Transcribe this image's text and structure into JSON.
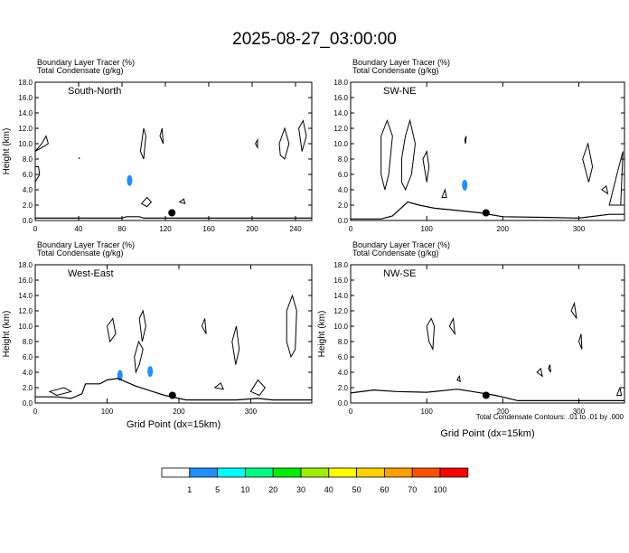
{
  "figure": {
    "title": "2025-08-27_03:00:00",
    "footnote": "Total Condensate Contours: .01 to .01 by .000",
    "xlabel": "Grid Point (dx=15km)"
  },
  "colorbar": {
    "colors": [
      "#ffffff",
      "#1e90ff",
      "#00ffff",
      "#00ff80",
      "#00ee00",
      "#a0ee00",
      "#ffff00",
      "#ffd200",
      "#ffa000",
      "#ff5000",
      "#ff0000"
    ],
    "labels": [
      "1",
      "5",
      "10",
      "20",
      "30",
      "40",
      "50",
      "60",
      "70",
      "100"
    ]
  },
  "chart_data": [
    {
      "type": "contour",
      "name": "South-North",
      "line1": "Boundary Layer Tracer   (%)",
      "line2": "Total Condensate   (g/kg)",
      "ylabel": "Height (km)",
      "xlabel": "",
      "xlim": [
        0,
        255
      ],
      "ylim": [
        0,
        18
      ],
      "xticks": [
        0,
        40,
        80,
        120,
        160,
        200,
        240
      ],
      "yticks": [
        0,
        2,
        4,
        6,
        8,
        10,
        12,
        14,
        16,
        18
      ],
      "ytick_labels": [
        "0.0",
        "2.0",
        "4.0",
        "6.0",
        "8.0",
        "10.0",
        "12.0",
        "14.0",
        "16.0",
        "18.0"
      ],
      "marker": {
        "x": 126,
        "y": 1.0
      },
      "terrain": [
        [
          0,
          0.3
        ],
        [
          80,
          0.3
        ],
        [
          84,
          0.5
        ],
        [
          96,
          0.5
        ],
        [
          100,
          0.3
        ],
        [
          255,
          0.3
        ]
      ],
      "tracer_blobs": [
        [
          87,
          5.2
        ]
      ],
      "condensate_blobs": [
        [
          [
            0,
            9
          ],
          [
            6,
            10
          ],
          [
            10,
            11
          ],
          [
            12,
            10
          ],
          [
            6,
            9.5
          ]
        ],
        [
          [
            97,
            9
          ],
          [
            100,
            12
          ],
          [
            102,
            11
          ],
          [
            100,
            8
          ]
        ],
        [
          [
            115,
            11
          ],
          [
            117,
            12
          ],
          [
            118,
            10
          ]
        ],
        [
          [
            40,
            8
          ],
          [
            41,
            8.2
          ]
        ],
        [
          [
            98,
            2.2
          ],
          [
            103,
            3
          ],
          [
            107,
            2.4
          ],
          [
            103,
            1.8
          ]
        ],
        [
          [
            133,
            2.4
          ],
          [
            137,
            2.8
          ],
          [
            138,
            2.2
          ]
        ],
        [
          [
            203,
            10
          ],
          [
            205,
            10.5
          ],
          [
            205,
            9.5
          ]
        ],
        [
          [
            225,
            10
          ],
          [
            230,
            12
          ],
          [
            234,
            10
          ],
          [
            230,
            8
          ],
          [
            226,
            8.5
          ]
        ],
        [
          [
            243,
            12
          ],
          [
            247,
            13
          ],
          [
            250,
            11
          ],
          [
            246,
            9
          ]
        ],
        [
          [
            0,
            5
          ],
          [
            4,
            6
          ],
          [
            3,
            7
          ],
          [
            0,
            7
          ]
        ]
      ]
    },
    {
      "type": "contour",
      "name": "SW-NE",
      "line1": "Boundary Layer Tracer   (%)",
      "line2": "Total Condensate   (g/kg)",
      "ylabel": "",
      "xlabel": "",
      "xlim": [
        0,
        360
      ],
      "ylim": [
        0,
        18
      ],
      "xticks": [
        0,
        100,
        200,
        300
      ],
      "yticks": [
        0,
        2,
        4,
        6,
        8,
        10,
        12,
        14,
        16,
        18
      ],
      "ytick_labels": [
        "0.0",
        "2.0",
        "4.0",
        "6.0",
        "8.0",
        "10.0",
        "12.0",
        "14.0",
        "16.0",
        "18.0"
      ],
      "marker": {
        "x": 178,
        "y": 1.0
      },
      "terrain": [
        [
          0,
          0.2
        ],
        [
          40,
          0.2
        ],
        [
          55,
          0.6
        ],
        [
          65,
          1.5
        ],
        [
          75,
          2.4
        ],
        [
          90,
          2.0
        ],
        [
          110,
          1.6
        ],
        [
          140,
          1.3
        ],
        [
          170,
          1.0
        ],
        [
          200,
          0.5
        ],
        [
          260,
          0.4
        ],
        [
          300,
          0.3
        ],
        [
          340,
          0.8
        ],
        [
          360,
          0.8
        ]
      ],
      "tracer_blobs": [
        [
          150,
          4.6
        ]
      ],
      "condensate_blobs": [
        [
          [
            40,
            11
          ],
          [
            48,
            13
          ],
          [
            55,
            11
          ],
          [
            50,
            6
          ],
          [
            45,
            4
          ],
          [
            40,
            6
          ]
        ],
        [
          [
            67,
            8
          ],
          [
            72,
            11
          ],
          [
            78,
            13
          ],
          [
            85,
            10
          ],
          [
            80,
            6
          ],
          [
            72,
            4
          ],
          [
            67,
            5
          ]
        ],
        [
          [
            95,
            8
          ],
          [
            100,
            9
          ],
          [
            103,
            7
          ],
          [
            100,
            5
          ]
        ],
        [
          [
            150,
            10.5
          ],
          [
            152,
            11
          ],
          [
            151,
            10
          ]
        ],
        [
          [
            305,
            8
          ],
          [
            312,
            10
          ],
          [
            318,
            7
          ],
          [
            313,
            5
          ]
        ],
        [
          [
            340,
            2
          ],
          [
            350,
            6
          ],
          [
            358,
            9
          ],
          [
            355,
            2
          ]
        ],
        [
          [
            120,
            3
          ],
          [
            124,
            4
          ],
          [
            126,
            3
          ]
        ],
        [
          [
            330,
            4
          ],
          [
            336,
            4.5
          ],
          [
            338,
            3.5
          ]
        ]
      ]
    },
    {
      "type": "contour",
      "name": "West-East",
      "line1": "Boundary Layer Tracer   (%)",
      "line2": "Total Condensate   (g/kg)",
      "ylabel": "Height (km)",
      "xlabel": "Grid Point (dx=15km)",
      "xlim": [
        0,
        385
      ],
      "ylim": [
        0,
        18
      ],
      "xticks": [
        0,
        100,
        200,
        300
      ],
      "yticks": [
        0,
        2,
        4,
        6,
        8,
        10,
        12,
        14,
        16,
        18
      ],
      "ytick_labels": [
        "0.0",
        "2.0",
        "4.0",
        "6.0",
        "8.0",
        "10.0",
        "12.0",
        "14.0",
        "16.0",
        "18.0"
      ],
      "marker": {
        "x": 191,
        "y": 1.0
      },
      "terrain": [
        [
          0,
          0.8
        ],
        [
          30,
          0.8
        ],
        [
          50,
          0.6
        ],
        [
          65,
          1.2
        ],
        [
          70,
          2.5
        ],
        [
          90,
          2.5
        ],
        [
          100,
          3.0
        ],
        [
          115,
          3.2
        ],
        [
          140,
          2.2
        ],
        [
          160,
          1.6
        ],
        [
          180,
          1.0
        ],
        [
          210,
          0.4
        ],
        [
          280,
          0.4
        ],
        [
          310,
          0.6
        ],
        [
          330,
          0.4
        ],
        [
          385,
          0.4
        ]
      ],
      "tracer_blobs": [
        [
          118,
          3.6
        ],
        [
          160,
          4.1
        ]
      ],
      "condensate_blobs": [
        [
          [
            100,
            10
          ],
          [
            108,
            11
          ],
          [
            112,
            9
          ],
          [
            104,
            8
          ]
        ],
        [
          [
            145,
            11
          ],
          [
            150,
            12
          ],
          [
            154,
            10
          ],
          [
            149,
            8
          ]
        ],
        [
          [
            138,
            6
          ],
          [
            144,
            8
          ],
          [
            150,
            7
          ],
          [
            145,
            5
          ],
          [
            140,
            4
          ]
        ],
        [
          [
            274,
            8
          ],
          [
            280,
            10
          ],
          [
            284,
            7
          ],
          [
            279,
            5
          ]
        ],
        [
          [
            232,
            10
          ],
          [
            236,
            11
          ],
          [
            238,
            9
          ]
        ],
        [
          [
            350,
            12
          ],
          [
            358,
            14
          ],
          [
            364,
            12
          ],
          [
            362,
            7
          ],
          [
            356,
            6
          ],
          [
            350,
            8
          ]
        ],
        [
          [
            300,
            1.5
          ],
          [
            310,
            3
          ],
          [
            320,
            2
          ],
          [
            312,
            1
          ]
        ],
        [
          [
            250,
            2
          ],
          [
            258,
            2.6
          ],
          [
            262,
            1.8
          ]
        ],
        [
          [
            20,
            1.5
          ],
          [
            40,
            2
          ],
          [
            50,
            1.5
          ],
          [
            30,
            1
          ]
        ]
      ]
    },
    {
      "type": "contour",
      "name": "NW-SE",
      "line1": "Boundary Layer Tracer   (%)",
      "line2": "Total Condensate   (g/kg)",
      "ylabel": "Height (km)",
      "xlabel": "Grid Point (dx=15km)",
      "xlim": [
        0,
        360
      ],
      "ylim": [
        0,
        18
      ],
      "xticks": [
        0,
        100,
        200,
        300
      ],
      "yticks": [
        0,
        2,
        4,
        6,
        8,
        10,
        12,
        14,
        16,
        18
      ],
      "ytick_labels": [
        "0.0",
        "2.0",
        "4.0",
        "6.0",
        "8.0",
        "10.0",
        "12.0",
        "14.0",
        "16.0",
        "18.0"
      ],
      "marker": {
        "x": 178,
        "y": 1.0
      },
      "terrain": [
        [
          0,
          1.3
        ],
        [
          30,
          1.7
        ],
        [
          60,
          1.5
        ],
        [
          100,
          1.4
        ],
        [
          140,
          1.8
        ],
        [
          160,
          1.5
        ],
        [
          190,
          1.0
        ],
        [
          220,
          0.3
        ],
        [
          360,
          0.3
        ]
      ],
      "tracer_blobs": [],
      "condensate_blobs": [
        [
          [
            100,
            10
          ],
          [
            106,
            11
          ],
          [
            110,
            10
          ],
          [
            108,
            7
          ],
          [
            103,
            8
          ]
        ],
        [
          [
            130,
            10
          ],
          [
            135,
            11
          ],
          [
            137,
            9
          ]
        ],
        [
          [
            290,
            12
          ],
          [
            294,
            13
          ],
          [
            297,
            11
          ]
        ],
        [
          [
            300,
            8
          ],
          [
            303,
            9
          ],
          [
            304,
            7
          ]
        ],
        [
          [
            245,
            4
          ],
          [
            250,
            4.5
          ],
          [
            252,
            3.5
          ]
        ],
        [
          [
            260,
            4.5
          ],
          [
            262,
            5
          ],
          [
            263,
            4
          ]
        ],
        [
          [
            140,
            3
          ],
          [
            143,
            3.5
          ],
          [
            144,
            2.8
          ]
        ],
        [
          [
            350,
            1
          ],
          [
            354,
            2
          ],
          [
            356,
            1
          ]
        ]
      ]
    }
  ]
}
